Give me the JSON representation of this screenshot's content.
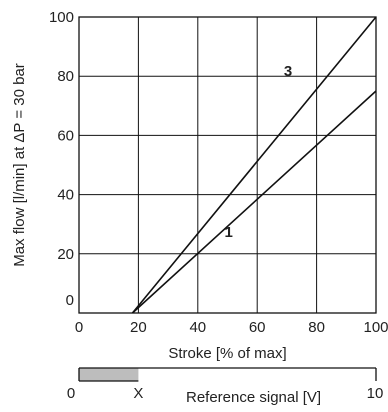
{
  "chart_data": {
    "type": "line",
    "xlabel": "Stroke [% of max]",
    "ylabel": "Max flow [l/min] at ΔP = 30 bar",
    "xlim": [
      0,
      100
    ],
    "ylim": [
      0,
      100
    ],
    "x_ticks": [
      "0",
      "20",
      "40",
      "60",
      "80",
      "100"
    ],
    "y_ticks": [
      "0",
      "20",
      "40",
      "60",
      "80",
      "100"
    ],
    "grid": true,
    "series": [
      {
        "name": "1",
        "x": [
          18,
          100
        ],
        "y": [
          0,
          75
        ]
      },
      {
        "name": "3",
        "x": [
          18,
          100
        ],
        "y": [
          0,
          100
        ]
      }
    ],
    "reference_signal": {
      "label": "Reference signal [V]",
      "min_label": "0",
      "max_label": "10",
      "marker_label": "X",
      "shaded_fraction": 0.2,
      "shaded_color": "#bdbdbd"
    },
    "line_color": "#111111",
    "grid_color": "#111111"
  }
}
